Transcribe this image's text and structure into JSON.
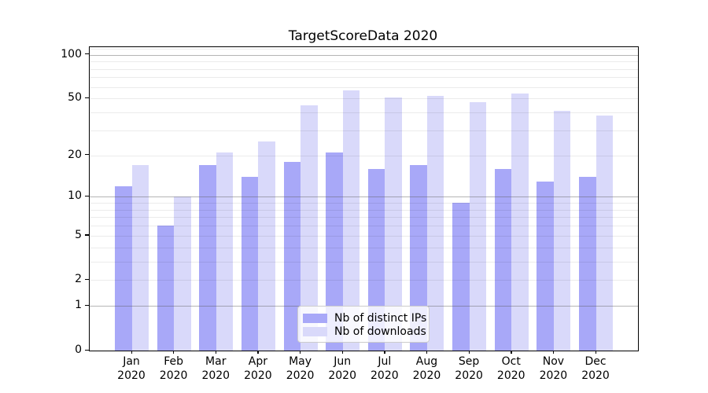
{
  "title": "TargetScoreData 2020",
  "colors": {
    "ips_bar": "#a8a8f8",
    "downloads_bar": "#d9d9fa",
    "grid_major": "rgba(90,90,90,0.45)",
    "grid_minor": "rgba(0,0,0,0.08)",
    "spine": "#000000",
    "legend_border": "#cccccc"
  },
  "legend": {
    "items": [
      {
        "label": "Nb of distinct IPs",
        "series": "ips"
      },
      {
        "label": "Nb of downloads",
        "series": "downloads"
      }
    ]
  },
  "chart_data": {
    "type": "bar",
    "title": "TargetScoreData 2020",
    "categories": [
      "Jan 2020",
      "Feb 2020",
      "Mar 2020",
      "Apr 2020",
      "May 2020",
      "Jun 2020",
      "Jul 2020",
      "Aug 2020",
      "Sep 2020",
      "Oct 2020",
      "Nov 2020",
      "Dec 2020"
    ],
    "series": [
      {
        "name": "Nb of distinct IPs",
        "color": "#a8a8f8",
        "values": [
          12,
          6,
          17,
          14,
          18,
          21,
          16,
          17,
          9,
          16,
          13,
          14
        ]
      },
      {
        "name": "Nb of downloads",
        "color": "#d9d9fa",
        "values": [
          17,
          10,
          21,
          25,
          45,
          57,
          51,
          52,
          47,
          54,
          41,
          38
        ]
      }
    ],
    "xlabel": "",
    "ylabel": "",
    "yscale": "log1p",
    "ylim": [
      0,
      112.6
    ],
    "y_ticks": [
      0,
      1,
      2,
      5,
      10,
      20,
      50,
      100
    ],
    "y_major_gridlines": [
      1,
      10,
      100
    ],
    "y_minor_gridlines": [
      2,
      3,
      4,
      5,
      6,
      7,
      8,
      9,
      20,
      30,
      40,
      50,
      60,
      70,
      80,
      90,
      110
    ],
    "grid": true,
    "legend_position": "lower center"
  }
}
